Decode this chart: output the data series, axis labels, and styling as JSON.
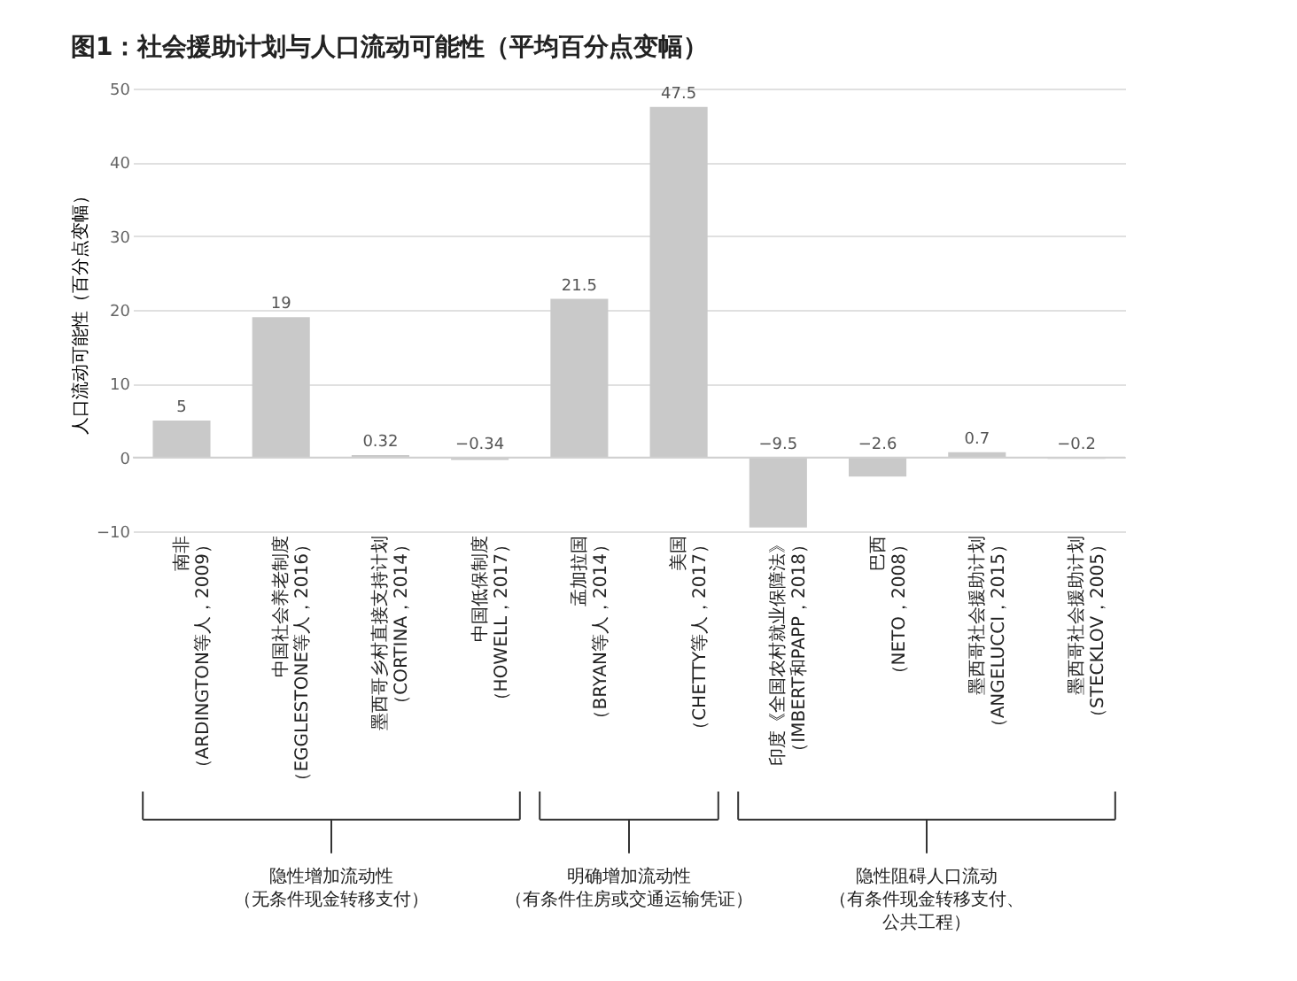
{
  "chart_data": {
    "type": "bar",
    "title": "图1：社会援助计划与人口流动可能性（平均百分点变幅）",
    "ylabel": "人口流动可能性（百分点变幅）",
    "categories": [
      "南非（ARDINGTON等人，2009）",
      "中国社会养老制度（EGGLESTONE等人，2016）",
      "墨西哥乡村直接支持计划（CORTINA，2014）",
      "中国低保制度（HOWELL，2017）",
      "孟加拉国（BRYAN等人，2014）",
      "美国（CHETTY等人，2017）",
      "印度《全国农村就业保障法》（IMBERT和PAPP，2018）",
      "巴西（NETO，2008）",
      "墨西哥社会援助计划（ANGELUCCI，2015）",
      "墨西哥社会援助计划（STECKLOV，2005）"
    ],
    "values": [
      5,
      19,
      0.32,
      -0.34,
      21.5,
      47.5,
      -9.5,
      -2.6,
      0.7,
      -0.2
    ],
    "color": "#c9c9c9",
    "ylim": [
      -10,
      50
    ],
    "yticks": [
      -10,
      0,
      10,
      20,
      30,
      40,
      50
    ],
    "grid": "y",
    "data_labels": true,
    "annotations": [
      "隐性增加流动性（无条件现金转移支付）",
      "明确增加流动性（有条件住房或交通运输凭证）",
      "隐性阻碍人口流动（有条件现金转移支付、公共工程）"
    ]
  }
}
